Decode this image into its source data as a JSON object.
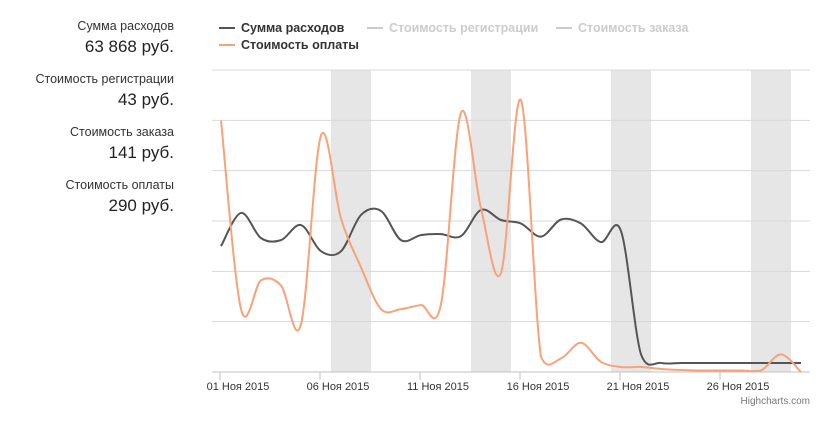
{
  "summary": {
    "total_label": "Сумма расходов",
    "total_value": "63 868 руб.",
    "registration_label": "Стоимость регистрации",
    "registration_value": "43 руб.",
    "order_label": "Стоимость заказа",
    "order_value": "141 руб.",
    "payment_label": "Стоимость оплаты",
    "payment_value": "290 руб."
  },
  "credits": "Highcharts.com",
  "chart_data": {
    "type": "line",
    "title": "",
    "xlabel": "",
    "ylabel": "",
    "x_range": [
      "2015-11-01",
      "2015-11-30"
    ],
    "x_tick_labels": [
      "01 Ноя 2015",
      "06 Ноя 2015",
      "11 Ноя 2015",
      "16 Ноя 2015",
      "21 Ноя 2015",
      "26 Ноя 2015"
    ],
    "y_tick_labels": [],
    "grid": true,
    "legend_position": "top",
    "weekend_bands": [
      [
        "2015-11-07",
        "2015-11-08"
      ],
      [
        "2015-11-14",
        "2015-11-15"
      ],
      [
        "2015-11-21",
        "2015-11-22"
      ],
      [
        "2015-11-28",
        "2015-11-29"
      ]
    ],
    "series": [
      {
        "name": "Сумма расходов",
        "color": "#555555",
        "visible": true,
        "x": [
          "2015-11-01",
          "2015-11-02",
          "2015-11-03",
          "2015-11-04",
          "2015-11-05",
          "2015-11-06",
          "2015-11-07",
          "2015-11-08",
          "2015-11-09",
          "2015-11-10",
          "2015-11-11",
          "2015-11-12",
          "2015-11-13",
          "2015-11-14",
          "2015-11-15",
          "2015-11-16",
          "2015-11-17",
          "2015-11-18",
          "2015-11-19",
          "2015-11-20",
          "2015-11-21",
          "2015-11-22",
          "2015-11-23",
          "2015-11-24",
          "2015-11-25",
          "2015-11-26",
          "2015-11-27",
          "2015-11-28",
          "2015-11-29",
          "2015-11-30"
        ],
        "values": [
          250,
          316,
          266,
          262,
          292,
          240,
          240,
          312,
          320,
          262,
          272,
          274,
          270,
          322,
          302,
          295,
          269,
          303,
          295,
          258,
          280,
          35,
          18,
          18,
          18,
          18,
          18,
          18,
          18,
          18
        ]
      },
      {
        "name": "Стоимость регистрации",
        "color": "#cccccc",
        "visible": false,
        "x": [],
        "values": []
      },
      {
        "name": "Стоимость заказа",
        "color": "#cccccc",
        "visible": false,
        "x": [],
        "values": []
      },
      {
        "name": "Стоимость оплаты",
        "color": "#f7a27a",
        "visible": true,
        "x": [
          "2015-11-01",
          "2015-11-02",
          "2015-11-03",
          "2015-11-04",
          "2015-11-05",
          "2015-11-06",
          "2015-11-07",
          "2015-11-08",
          "2015-11-09",
          "2015-11-10",
          "2015-11-11",
          "2015-11-12",
          "2015-11-13",
          "2015-11-14",
          "2015-11-15",
          "2015-11-16",
          "2015-11-17",
          "2015-11-18",
          "2015-11-19",
          "2015-11-20",
          "2015-11-21",
          "2015-11-22",
          "2015-11-23",
          "2015-11-24",
          "2015-11-25",
          "2015-11-26",
          "2015-11-27",
          "2015-11-28",
          "2015-11-29",
          "2015-11-30"
        ],
        "values": [
          500,
          125,
          182,
          172,
          95,
          470,
          305,
          208,
          125,
          125,
          133,
          135,
          515,
          325,
          197,
          540,
          30,
          27,
          58,
          20,
          10,
          10,
          6,
          4,
          3,
          3,
          3,
          3,
          35,
          0
        ]
      }
    ]
  }
}
